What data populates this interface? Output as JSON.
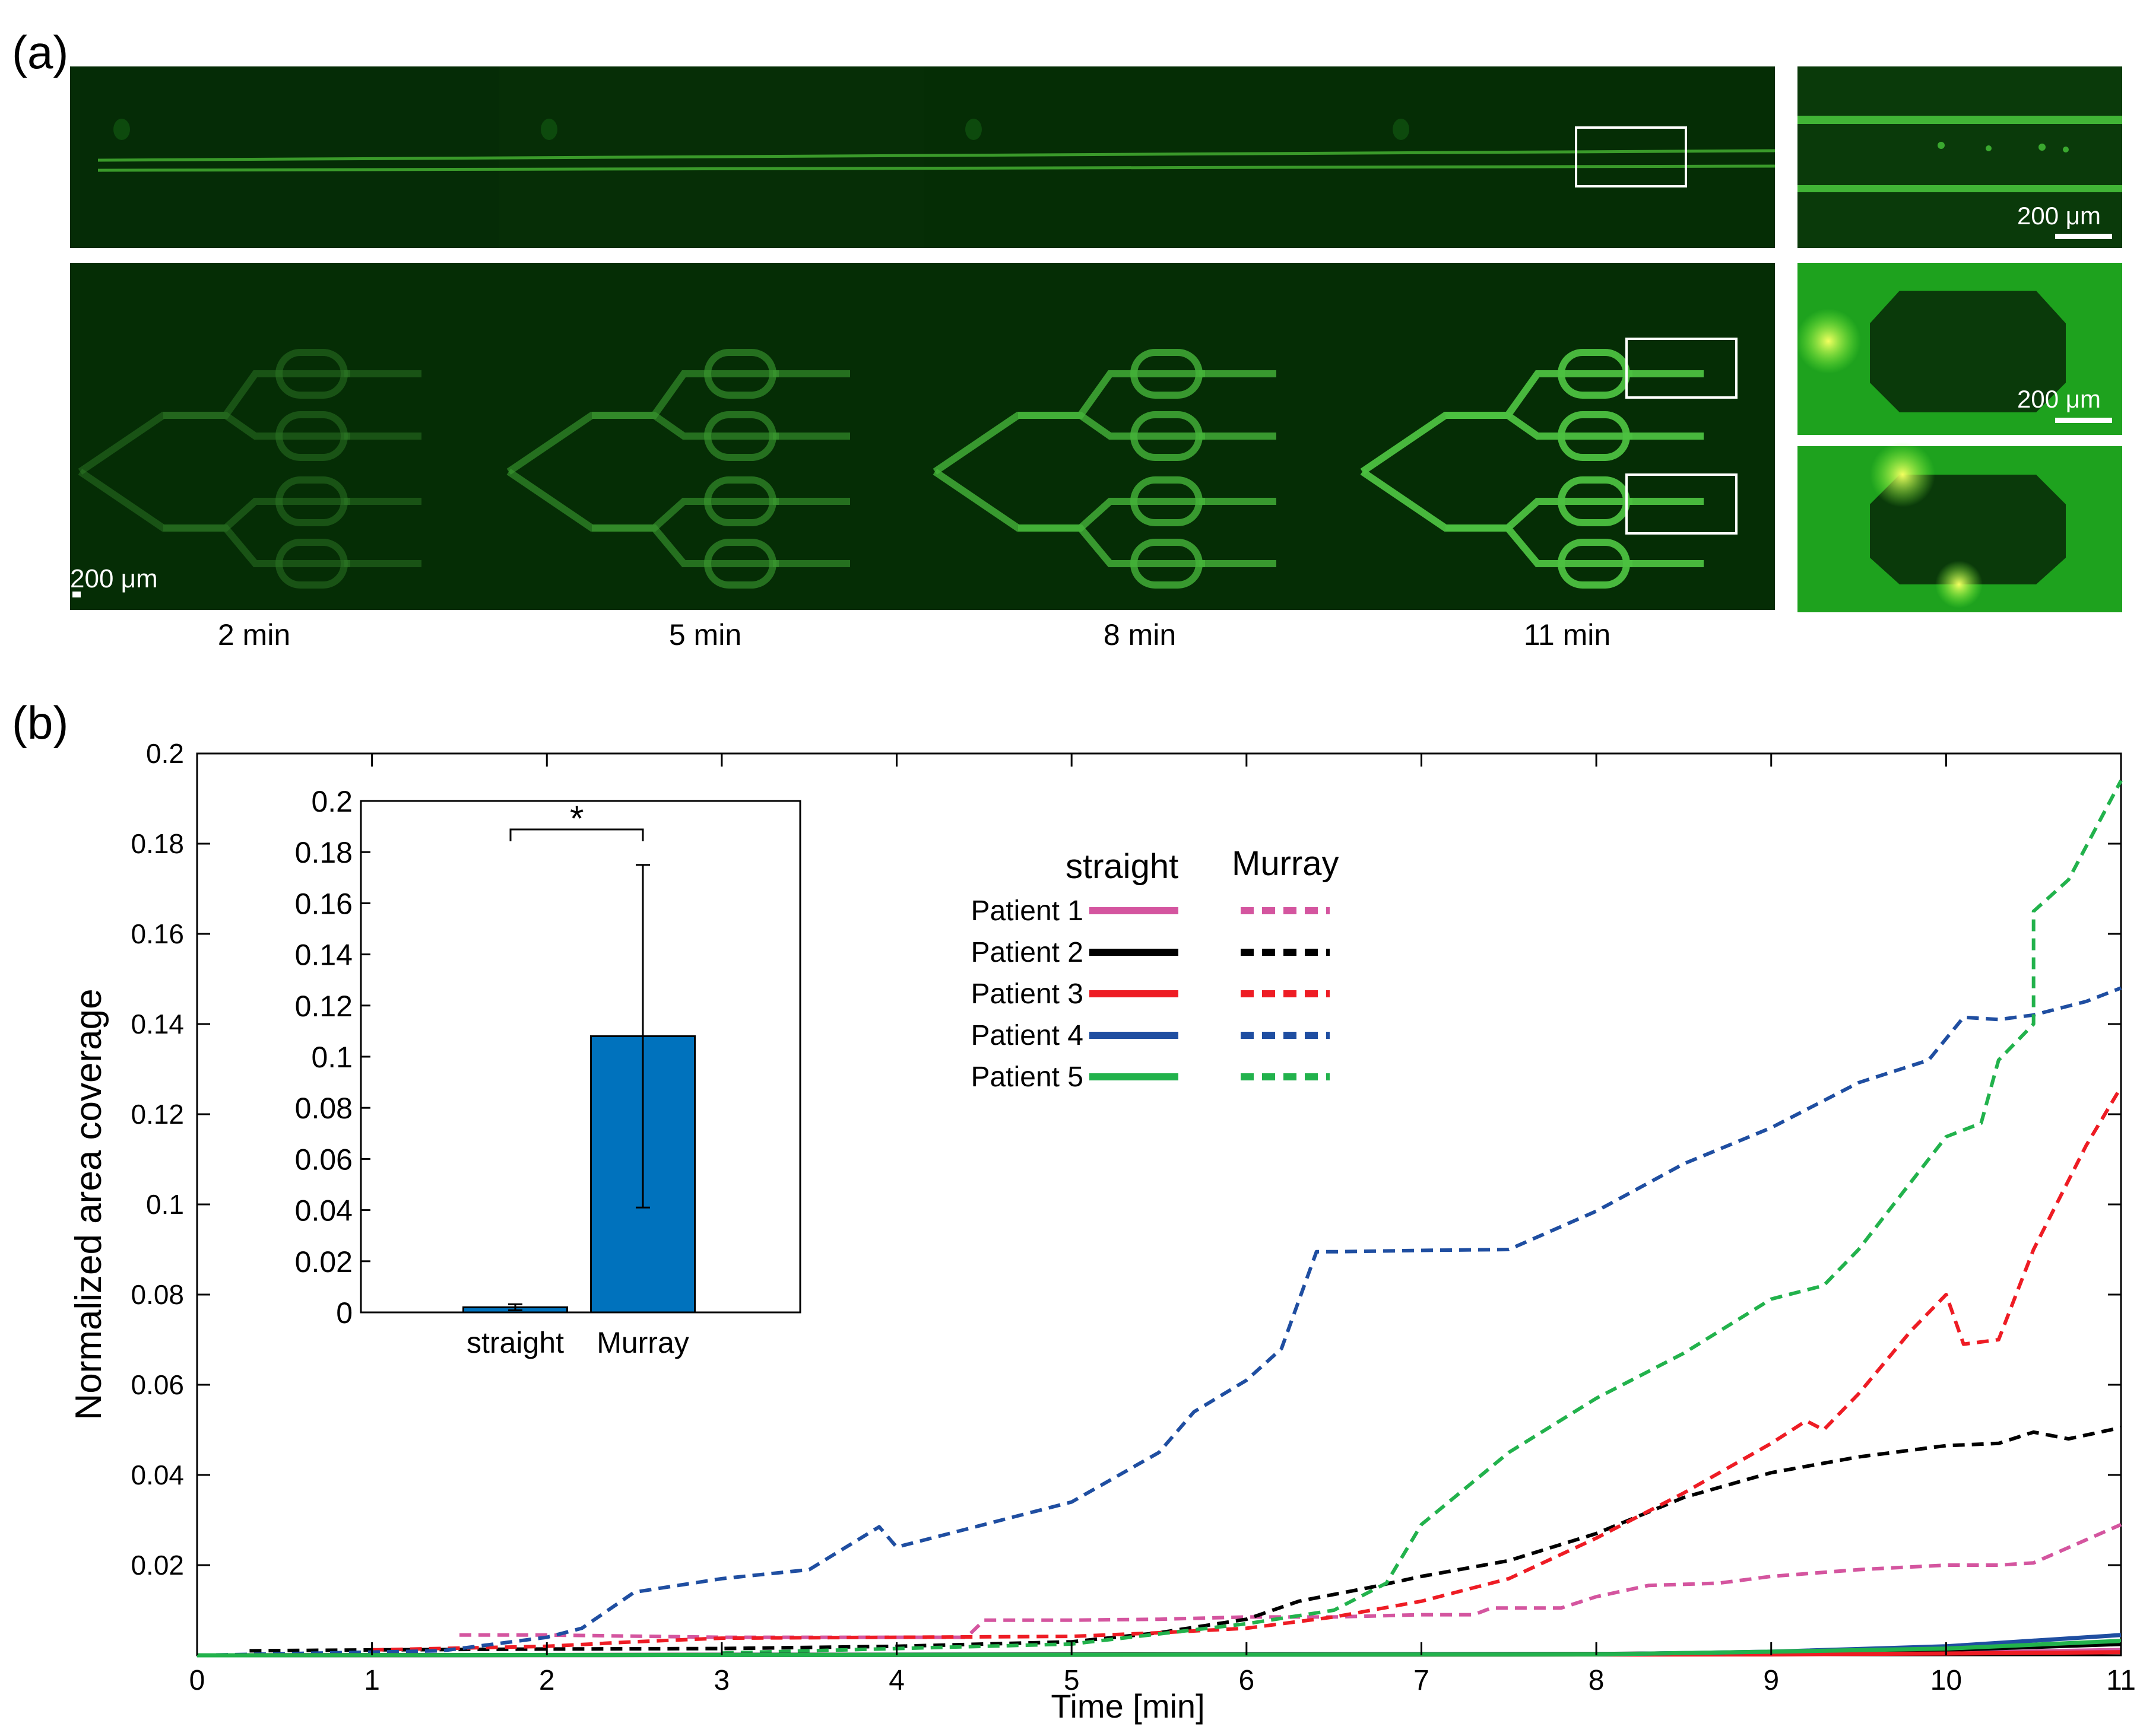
{
  "panel_a": {
    "label": "(a)",
    "time_labels": [
      "2 min",
      "5 min",
      "8 min",
      "11 min"
    ],
    "scale_bar_label": "200 μm",
    "inset_scale_label": "200 μm"
  },
  "panel_b": {
    "label": "(b)"
  },
  "colors": {
    "patient1": "#d4559f",
    "patient2": "#000000",
    "patient3": "#ee1c24",
    "patient4": "#1f4ea1",
    "patient5": "#22b24c",
    "bar": "#0072bd",
    "micro_bg": "#052d05"
  },
  "chart_data": [
    {
      "type": "line",
      "title": "",
      "xlabel": "Time [min]",
      "ylabel": "Normalized area coverage",
      "xlim": [
        0,
        11
      ],
      "ylim": [
        0,
        0.2
      ],
      "x_ticks": [
        "0",
        "1",
        "2",
        "3",
        "4",
        "5",
        "6",
        "7",
        "8",
        "9",
        "10",
        "11"
      ],
      "y_ticks": [
        "0.02",
        "0.04",
        "0.06",
        "0.08",
        "0.1",
        "0.12",
        "0.14",
        "0.16",
        "0.18",
        "0.2"
      ],
      "legend": {
        "position": "upper-middle",
        "col_straight": "straight",
        "col_murray": "Murray",
        "rows": [
          "Patient 1",
          "Patient 2",
          "Patient 3",
          "Patient 4",
          "Patient 5"
        ]
      },
      "series": [
        {
          "name": "Patient 1 Murray",
          "color": "#d4559f",
          "style": "dashed",
          "points": [
            [
              1.5,
              0.0045
            ],
            [
              2,
              0.0045
            ],
            [
              3,
              0.004
            ],
            [
              4,
              0.004
            ],
            [
              4.4,
              0.004
            ],
            [
              4.5,
              0.0078
            ],
            [
              5,
              0.0078
            ],
            [
              5.5,
              0.008
            ],
            [
              6,
              0.0085
            ],
            [
              6.5,
              0.0085
            ],
            [
              7,
              0.009
            ],
            [
              7.3,
              0.009
            ],
            [
              7.4,
              0.0105
            ],
            [
              7.8,
              0.0105
            ],
            [
              8,
              0.013
            ],
            [
              8.3,
              0.0155
            ],
            [
              8.7,
              0.016
            ],
            [
              9,
              0.0175
            ],
            [
              9.5,
              0.019
            ],
            [
              10,
              0.02
            ],
            [
              10.3,
              0.02
            ],
            [
              10.5,
              0.0205
            ],
            [
              11,
              0.029
            ]
          ]
        },
        {
          "name": "Patient 2 Murray",
          "color": "#000000",
          "style": "dashed",
          "points": [
            [
              0.3,
              0.001
            ],
            [
              1,
              0.0012
            ],
            [
              2,
              0.0014
            ],
            [
              3,
              0.0015
            ],
            [
              4,
              0.002
            ],
            [
              5,
              0.003
            ],
            [
              5.5,
              0.005
            ],
            [
              6,
              0.008
            ],
            [
              6.3,
              0.012
            ],
            [
              6.7,
              0.015
            ],
            [
              7,
              0.0175
            ],
            [
              7.5,
              0.021
            ],
            [
              8,
              0.027
            ],
            [
              8.5,
              0.035
            ],
            [
              9,
              0.0405
            ],
            [
              9.5,
              0.044
            ],
            [
              10,
              0.0465
            ],
            [
              10.3,
              0.047
            ],
            [
              10.5,
              0.0495
            ],
            [
              10.7,
              0.048
            ],
            [
              11,
              0.0505
            ]
          ]
        },
        {
          "name": "Patient 3 Murray",
          "color": "#ee1c24",
          "style": "dashed",
          "points": [
            [
              1,
              0.0012
            ],
            [
              2,
              0.002
            ],
            [
              2.5,
              0.003
            ],
            [
              3,
              0.0038
            ],
            [
              4,
              0.004
            ],
            [
              5,
              0.0042
            ],
            [
              5.5,
              0.005
            ],
            [
              6,
              0.006
            ],
            [
              6.5,
              0.0085
            ],
            [
              7,
              0.012
            ],
            [
              7.5,
              0.017
            ],
            [
              8,
              0.026
            ],
            [
              8.5,
              0.036
            ],
            [
              9,
              0.047
            ],
            [
              9.2,
              0.052
            ],
            [
              9.3,
              0.05
            ],
            [
              9.5,
              0.058
            ],
            [
              9.8,
              0.072
            ],
            [
              10,
              0.08
            ],
            [
              10.1,
              0.069
            ],
            [
              10.3,
              0.07
            ],
            [
              10.5,
              0.09
            ],
            [
              10.8,
              0.113
            ],
            [
              11,
              0.126
            ]
          ]
        },
        {
          "name": "Patient 4 Murray",
          "color": "#1f4ea1",
          "style": "dashed",
          "points": [
            [
              0,
              0
            ],
            [
              1.4,
              0.001
            ],
            [
              2,
              0.004
            ],
            [
              2.2,
              0.006
            ],
            [
              2.5,
              0.014
            ],
            [
              3,
              0.017
            ],
            [
              3.5,
              0.019
            ],
            [
              3.9,
              0.0285
            ],
            [
              4,
              0.024
            ],
            [
              4.5,
              0.029
            ],
            [
              5,
              0.034
            ],
            [
              5.5,
              0.045
            ],
            [
              5.7,
              0.054
            ],
            [
              6,
              0.061
            ],
            [
              6.2,
              0.068
            ],
            [
              6.4,
              0.0895
            ],
            [
              6.5,
              0.0895
            ],
            [
              7,
              0.0898
            ],
            [
              7.5,
              0.09
            ],
            [
              8,
              0.0985
            ],
            [
              8.5,
              0.109
            ],
            [
              9,
              0.117
            ],
            [
              9.5,
              0.127
            ],
            [
              9.9,
              0.132
            ],
            [
              10.1,
              0.1415
            ],
            [
              10.3,
              0.141
            ],
            [
              10.5,
              0.142
            ],
            [
              10.8,
              0.145
            ],
            [
              11,
              0.148
            ]
          ]
        },
        {
          "name": "Patient 5 Murray",
          "color": "#22b24c",
          "style": "dashed",
          "points": [
            [
              3,
              0.0005
            ],
            [
              4,
              0.0015
            ],
            [
              5,
              0.0025
            ],
            [
              6,
              0.007
            ],
            [
              6.5,
              0.01
            ],
            [
              6.8,
              0.016
            ],
            [
              7,
              0.029
            ],
            [
              7.5,
              0.045
            ],
            [
              8,
              0.057
            ],
            [
              8.5,
              0.067
            ],
            [
              9,
              0.079
            ],
            [
              9.3,
              0.082
            ],
            [
              9.5,
              0.09
            ],
            [
              9.8,
              0.105
            ],
            [
              10,
              0.115
            ],
            [
              10.2,
              0.118
            ],
            [
              10.3,
              0.132
            ],
            [
              10.5,
              0.14
            ],
            [
              10.5,
              0.165
            ],
            [
              10.7,
              0.172
            ],
            [
              11,
              0.194
            ]
          ]
        },
        {
          "name": "Patient 1 straight",
          "color": "#d4559f",
          "style": "solid",
          "points": [
            [
              0,
              0
            ],
            [
              9,
              0.0003
            ],
            [
              10,
              0.0005
            ],
            [
              11,
              0.0012
            ]
          ]
        },
        {
          "name": "Patient 2 straight",
          "color": "#000000",
          "style": "solid",
          "points": [
            [
              0,
              0
            ],
            [
              8,
              0.0003
            ],
            [
              9,
              0.0006
            ],
            [
              10,
              0.0012
            ],
            [
              11,
              0.0025
            ]
          ]
        },
        {
          "name": "Patient 3 straight",
          "color": "#ee1c24",
          "style": "solid",
          "points": [
            [
              0,
              0
            ],
            [
              9,
              0.0002
            ],
            [
              10,
              0.0004
            ],
            [
              11,
              0.0007
            ]
          ]
        },
        {
          "name": "Patient 4 straight",
          "color": "#1f4ea1",
          "style": "solid",
          "points": [
            [
              0,
              0
            ],
            [
              8,
              0.0002
            ],
            [
              9,
              0.0008
            ],
            [
              10,
              0.002
            ],
            [
              11,
              0.0045
            ]
          ]
        },
        {
          "name": "Patient 5 straight",
          "color": "#22b24c",
          "style": "solid",
          "points": [
            [
              0,
              0
            ],
            [
              8,
              0.0002
            ],
            [
              9,
              0.0008
            ],
            [
              10,
              0.0015
            ],
            [
              11,
              0.0032
            ]
          ]
        }
      ]
    },
    {
      "type": "bar",
      "title": "",
      "significance": "*",
      "categories": [
        "straight",
        "Murray"
      ],
      "values": [
        0.002,
        0.108
      ],
      "errors": [
        0.0012,
        0.067
      ],
      "ylim": [
        0,
        0.2
      ],
      "y_ticks": [
        "0",
        "0.02",
        "0.04",
        "0.06",
        "0.08",
        "0.1",
        "0.12",
        "0.14",
        "0.16",
        "0.18",
        "0.2"
      ]
    }
  ]
}
